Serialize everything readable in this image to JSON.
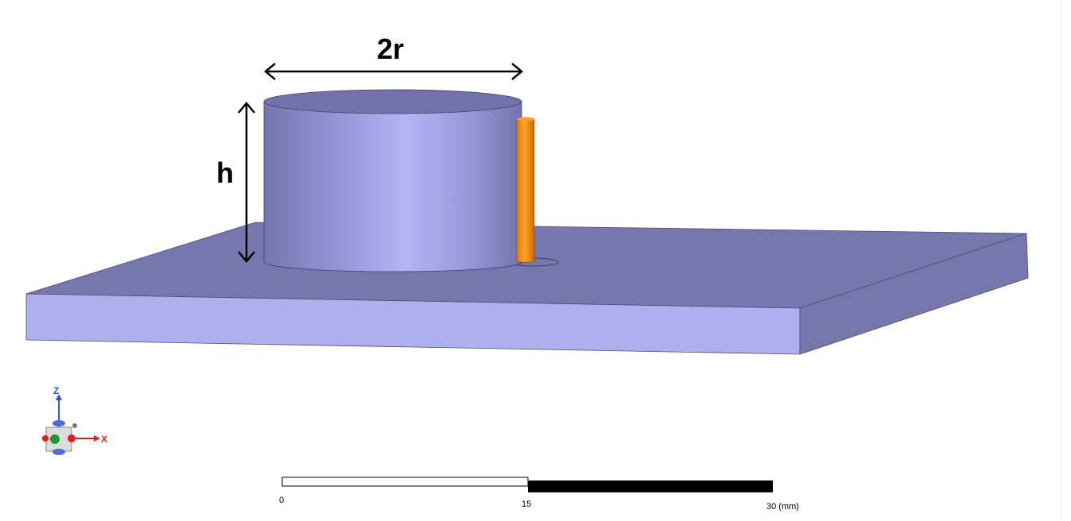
{
  "dimensions": {
    "diameter_label": "2r",
    "height_label": "h"
  },
  "scale_bar": {
    "ticks": [
      "0",
      "15",
      "30 (mm)"
    ]
  },
  "axes": {
    "z_label": "Z",
    "x_label": "X"
  },
  "colors": {
    "substrate": "#aeb0ee",
    "substrate_top": "#7577ad",
    "resonator": "#9a9ce0",
    "probe": "#f08a10",
    "dimension_arrows": "#000000"
  }
}
